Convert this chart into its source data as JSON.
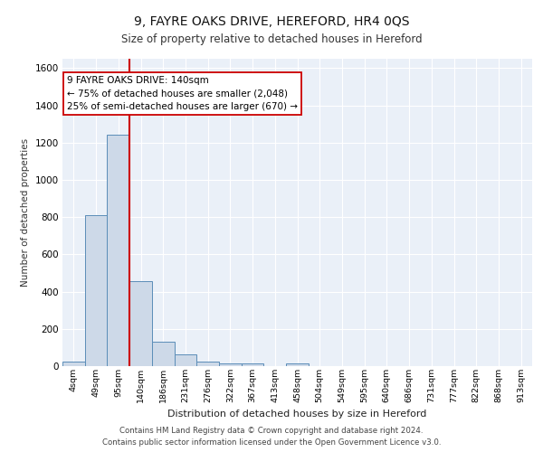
{
  "title1": "9, FAYRE OAKS DRIVE, HEREFORD, HR4 0QS",
  "title2": "Size of property relative to detached houses in Hereford",
  "xlabel": "Distribution of detached houses by size in Hereford",
  "ylabel": "Number of detached properties",
  "bin_labels": [
    "4sqm",
    "49sqm",
    "95sqm",
    "140sqm",
    "186sqm",
    "231sqm",
    "276sqm",
    "322sqm",
    "367sqm",
    "413sqm",
    "458sqm",
    "504sqm",
    "549sqm",
    "595sqm",
    "640sqm",
    "686sqm",
    "731sqm",
    "777sqm",
    "822sqm",
    "868sqm",
    "913sqm"
  ],
  "bar_heights": [
    25,
    810,
    1240,
    455,
    130,
    65,
    25,
    15,
    15,
    0,
    15,
    0,
    0,
    0,
    0,
    0,
    0,
    0,
    0,
    0,
    0
  ],
  "bar_color": "#cdd9e8",
  "bar_edge_color": "#5b8db8",
  "red_line_index": 3,
  "red_line_color": "#cc0000",
  "annotation_text": "9 FAYRE OAKS DRIVE: 140sqm\n← 75% of detached houses are smaller (2,048)\n25% of semi-detached houses are larger (670) →",
  "annotation_box_color": "white",
  "annotation_box_edge_color": "#cc0000",
  "ylim": [
    0,
    1650
  ],
  "yticks": [
    0,
    200,
    400,
    600,
    800,
    1000,
    1200,
    1400,
    1600
  ],
  "bg_color": "#eaf0f8",
  "grid_color": "white",
  "footer_line1": "Contains HM Land Registry data © Crown copyright and database right 2024.",
  "footer_line2": "Contains public sector information licensed under the Open Government Licence v3.0."
}
